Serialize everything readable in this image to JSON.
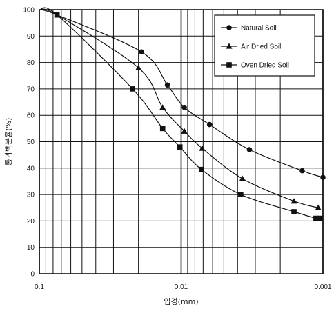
{
  "chart_data": {
    "type": "line",
    "title": "",
    "xlabel": "입경(mm)",
    "ylabel": "통과백분율(%)",
    "x_scale": "log",
    "x_reversed": true,
    "xlim": [
      0.1,
      0.001
    ],
    "ylim": [
      0,
      100
    ],
    "x_ticks": [
      0.1,
      0.01,
      0.001
    ],
    "x_tick_labels": [
      "0.1",
      "0.01",
      "0.001"
    ],
    "y_ticks": [
      0,
      10,
      20,
      30,
      40,
      50,
      60,
      70,
      80,
      90,
      100
    ],
    "y_tick_labels": [
      "0",
      "10",
      "20",
      "30",
      "40",
      "50",
      "60",
      "70",
      "80",
      "90",
      "100"
    ],
    "grid": true,
    "legend_position": "top-right",
    "series": [
      {
        "name": "Natural Soil",
        "marker": "circle",
        "color": "#111111",
        "x": [
          0.1,
          0.075,
          0.019,
          0.0125,
          0.0095,
          0.0063,
          0.0033,
          0.0014,
          0.001
        ],
        "y": [
          100,
          98,
          84,
          71.5,
          63,
          56.5,
          47,
          39,
          36.5
        ]
      },
      {
        "name": "Air Dried Soil",
        "marker": "triangle",
        "color": "#111111",
        "x": [
          0.1,
          0.075,
          0.02,
          0.0135,
          0.0095,
          0.0071,
          0.0037,
          0.0016,
          0.00108
        ],
        "y": [
          100,
          98,
          78,
          63,
          54,
          47.5,
          36,
          27.5,
          25
        ]
      },
      {
        "name": "Oven Dried Soil",
        "marker": "square",
        "color": "#111111",
        "x": [
          0.1,
          0.075,
          0.022,
          0.0135,
          0.0102,
          0.0072,
          0.0038,
          0.0016,
          0.00112,
          0.00105
        ],
        "y": [
          100,
          98,
          70,
          55,
          48,
          39.5,
          30,
          23.5,
          21,
          21
        ]
      }
    ]
  }
}
